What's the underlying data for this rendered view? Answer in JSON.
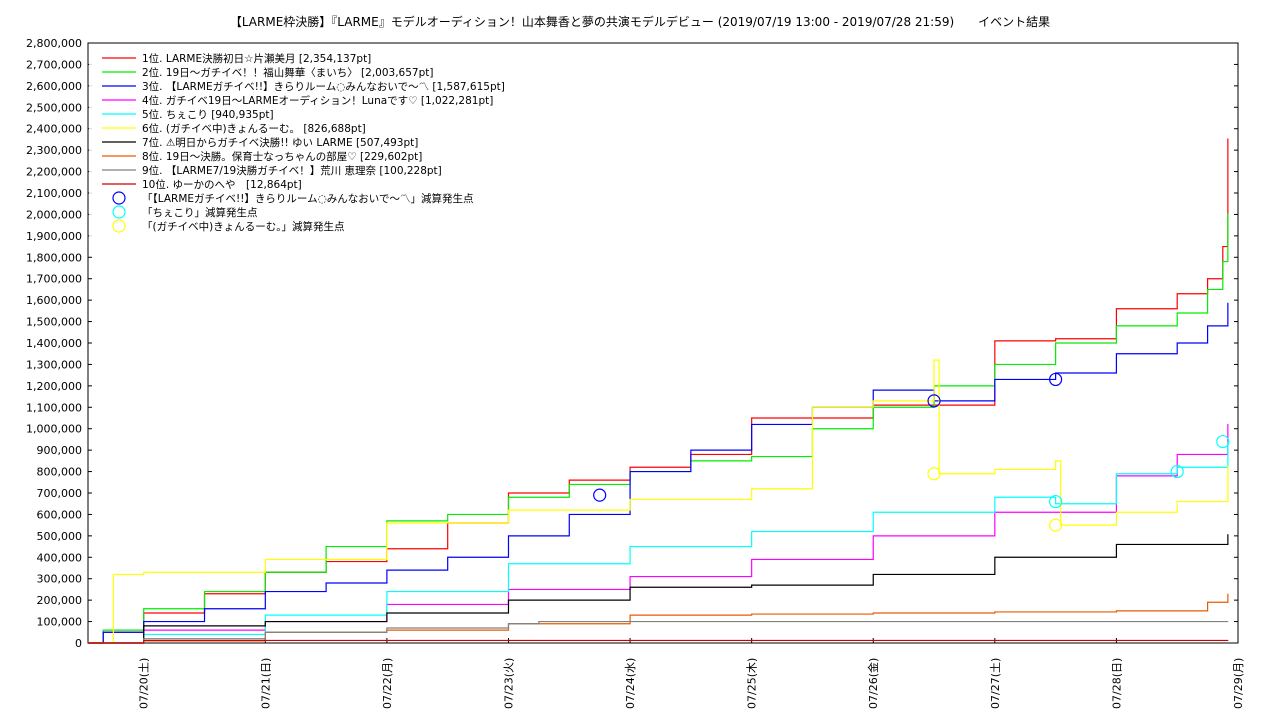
{
  "chart_data": {
    "type": "line",
    "title": "【LARME枠決勝】『LARME』モデルオーディション！山本舞香と夢の共演モデルデビュー (2019/07/19 13:00 - 2019/07/28 21:59)　　イベント結果",
    "ylim": [
      0,
      2800000
    ],
    "yticks": [
      0,
      100000,
      200000,
      300000,
      400000,
      500000,
      600000,
      700000,
      800000,
      900000,
      1000000,
      1100000,
      1200000,
      1300000,
      1400000,
      1500000,
      1600000,
      1700000,
      1800000,
      1900000,
      2000000,
      2100000,
      2200000,
      2300000,
      2400000,
      2500000,
      2600000,
      2700000,
      2800000
    ],
    "ytick_labels": [
      "0",
      "100,000",
      "200,000",
      "300,000",
      "400,000",
      "500,000",
      "600,000",
      "700,000",
      "800,000",
      "900,000",
      "1,000,000",
      "1,100,000",
      "1,200,000",
      "1,300,000",
      "1,400,000",
      "1,500,000",
      "1,600,000",
      "1,700,000",
      "1,800,000",
      "1,900,000",
      "2,000,000",
      "2,100,000",
      "2,200,000",
      "2,300,000",
      "2,400,000",
      "2,500,000",
      "2,600,000",
      "2,700,000",
      "2,800,000"
    ],
    "xlim": [
      "2019-07-19T13:00",
      "2019-07-29T00:00"
    ],
    "xticks": [
      "2019-07-20T00:00",
      "2019-07-21T00:00",
      "2019-07-22T00:00",
      "2019-07-23T00:00",
      "2019-07-24T00:00",
      "2019-07-25T00:00",
      "2019-07-26T00:00",
      "2019-07-27T00:00",
      "2019-07-28T00:00",
      "2019-07-29T00:00"
    ],
    "xtick_labels": [
      "07/20(土)",
      "07/21(日)",
      "07/22(月)",
      "07/23(火)",
      "07/24(水)",
      "07/25(木)",
      "07/26(金)",
      "07/27(土)",
      "07/28(日)",
      "07/29(月)"
    ],
    "grid": true,
    "legend_position": "top-left",
    "series": [
      {
        "name": "1位. LARME決勝初日☆片瀬美月 [2,354,137pt]",
        "color": "#ff0000",
        "x": [
          "2019-07-19T13:00",
          "2019-07-19T16:00",
          "2019-07-20T00:00",
          "2019-07-20T12:00",
          "2019-07-21T00:00",
          "2019-07-21T12:00",
          "2019-07-22T00:00",
          "2019-07-22T12:00",
          "2019-07-23T00:00",
          "2019-07-23T12:00",
          "2019-07-24T00:00",
          "2019-07-24T12:00",
          "2019-07-25T00:00",
          "2019-07-25T12:00",
          "2019-07-26T00:00",
          "2019-07-26T12:00",
          "2019-07-27T00:00",
          "2019-07-27T12:00",
          "2019-07-28T00:00",
          "2019-07-28T12:00",
          "2019-07-28T18:00",
          "2019-07-28T21:00",
          "2019-07-28T22:00"
        ],
        "y": [
          0,
          50000,
          140000,
          230000,
          330000,
          380000,
          440000,
          560000,
          700000,
          760000,
          820000,
          880000,
          1050000,
          1050000,
          1110000,
          1110000,
          1410000,
          1420000,
          1560000,
          1630000,
          1700000,
          1850000,
          2354137
        ]
      },
      {
        "name": "2位. 19日～ガチイベ！！福山舞華〈まいち〉 [2,003,657pt]",
        "color": "#00ee00",
        "x": [
          "2019-07-19T13:00",
          "2019-07-19T16:00",
          "2019-07-20T00:00",
          "2019-07-20T12:00",
          "2019-07-21T00:00",
          "2019-07-21T12:00",
          "2019-07-22T00:00",
          "2019-07-22T12:00",
          "2019-07-23T00:00",
          "2019-07-23T12:00",
          "2019-07-24T00:00",
          "2019-07-24T12:00",
          "2019-07-25T00:00",
          "2019-07-25T12:00",
          "2019-07-26T00:00",
          "2019-07-26T12:00",
          "2019-07-27T00:00",
          "2019-07-27T12:00",
          "2019-07-28T00:00",
          "2019-07-28T12:00",
          "2019-07-28T18:00",
          "2019-07-28T21:00",
          "2019-07-28T22:00"
        ],
        "y": [
          0,
          60000,
          160000,
          240000,
          330000,
          450000,
          570000,
          600000,
          680000,
          740000,
          800000,
          850000,
          870000,
          1000000,
          1100000,
          1200000,
          1300000,
          1400000,
          1480000,
          1540000,
          1650000,
          1780000,
          2003657
        ]
      },
      {
        "name": "3位. 【LARMEガチイベ!!】きらりルーム◌みんなおいで～〽 [1,587,615pt]",
        "color": "#0000ff",
        "x": [
          "2019-07-19T13:00",
          "2019-07-19T16:00",
          "2019-07-20T00:00",
          "2019-07-20T12:00",
          "2019-07-21T00:00",
          "2019-07-21T12:00",
          "2019-07-22T00:00",
          "2019-07-22T12:00",
          "2019-07-23T00:00",
          "2019-07-23T12:00",
          "2019-07-24T00:00",
          "2019-07-24T12:00",
          "2019-07-25T00:00",
          "2019-07-25T12:00",
          "2019-07-26T00:00",
          "2019-07-26T12:00",
          "2019-07-27T00:00",
          "2019-07-27T12:00",
          "2019-07-28T00:00",
          "2019-07-28T12:00",
          "2019-07-28T18:00",
          "2019-07-28T22:00"
        ],
        "y": [
          0,
          50000,
          100000,
          160000,
          240000,
          280000,
          340000,
          400000,
          500000,
          600000,
          800000,
          900000,
          1020000,
          1100000,
          1180000,
          1130000,
          1230000,
          1260000,
          1350000,
          1400000,
          1480000,
          1587615
        ]
      },
      {
        "name": "4位. ガチイベ19日～LARMEオーディション！Lunaです♡ [1,022,281pt]",
        "color": "#ff00ff",
        "x": [
          "2019-07-19T13:00",
          "2019-07-20T00:00",
          "2019-07-21T00:00",
          "2019-07-22T00:00",
          "2019-07-23T00:00",
          "2019-07-24T00:00",
          "2019-07-25T00:00",
          "2019-07-26T00:00",
          "2019-07-27T00:00",
          "2019-07-28T00:00",
          "2019-07-28T12:00",
          "2019-07-28T22:00"
        ],
        "y": [
          0,
          60000,
          100000,
          180000,
          250000,
          310000,
          390000,
          500000,
          610000,
          780000,
          880000,
          1022281
        ]
      },
      {
        "name": "5位. ちぇこり [940,935pt]",
        "color": "#00ffff",
        "x": [
          "2019-07-19T13:00",
          "2019-07-20T00:00",
          "2019-07-21T00:00",
          "2019-07-22T00:00",
          "2019-07-23T00:00",
          "2019-07-24T00:00",
          "2019-07-25T00:00",
          "2019-07-26T00:00",
          "2019-07-27T00:00",
          "2019-07-27T12:00",
          "2019-07-28T00:00",
          "2019-07-28T12:00",
          "2019-07-28T22:00"
        ],
        "y": [
          0,
          40000,
          130000,
          240000,
          370000,
          450000,
          520000,
          610000,
          680000,
          650000,
          790000,
          820000,
          940935
        ]
      },
      {
        "name": "6位. (ガチイベ中)きょんるーむ。 [826,688pt]",
        "color": "#ffff00",
        "x": [
          "2019-07-19T13:00",
          "2019-07-19T18:00",
          "2019-07-20T00:00",
          "2019-07-21T00:00",
          "2019-07-22T00:00",
          "2019-07-23T00:00",
          "2019-07-24T00:00",
          "2019-07-25T00:00",
          "2019-07-25T12:00",
          "2019-07-26T00:00",
          "2019-07-26T12:00",
          "2019-07-26T13:00",
          "2019-07-27T00:00",
          "2019-07-27T12:00",
          "2019-07-27T13:00",
          "2019-07-28T00:00",
          "2019-07-28T12:00",
          "2019-07-28T22:00"
        ],
        "y": [
          0,
          320000,
          330000,
          390000,
          560000,
          620000,
          670000,
          720000,
          1100000,
          1130000,
          1320000,
          790000,
          810000,
          850000,
          550000,
          610000,
          660000,
          826688
        ]
      },
      {
        "name": "7位. ⚠明日からガチイベ決勝!! ゆい LARME [507,493pt]",
        "color": "#000000",
        "x": [
          "2019-07-19T13:00",
          "2019-07-20T00:00",
          "2019-07-21T00:00",
          "2019-07-22T00:00",
          "2019-07-23T00:00",
          "2019-07-24T00:00",
          "2019-07-25T00:00",
          "2019-07-26T00:00",
          "2019-07-27T00:00",
          "2019-07-28T00:00",
          "2019-07-28T22:00"
        ],
        "y": [
          0,
          80000,
          100000,
          140000,
          200000,
          260000,
          270000,
          320000,
          400000,
          460000,
          507493
        ]
      },
      {
        "name": "8位. 19日～決勝。保育士なっちゃんの部屋♡ [229,602pt]",
        "color": "#e65c00",
        "x": [
          "2019-07-19T13:00",
          "2019-07-20T00:00",
          "2019-07-21T00:00",
          "2019-07-22T00:00",
          "2019-07-23T00:00",
          "2019-07-24T00:00",
          "2019-07-25T00:00",
          "2019-07-26T00:00",
          "2019-07-27T00:00",
          "2019-07-28T00:00",
          "2019-07-28T18:00",
          "2019-07-28T22:00"
        ],
        "y": [
          0,
          10000,
          50000,
          60000,
          90000,
          130000,
          135000,
          140000,
          145000,
          150000,
          190000,
          229602
        ]
      },
      {
        "name": "9位. 【LARME7/19決勝ガチイベ！】荒川 恵理奈 [100,228pt]",
        "color": "#808080",
        "x": [
          "2019-07-19T13:00",
          "2019-07-20T00:00",
          "2019-07-21T00:00",
          "2019-07-22T00:00",
          "2019-07-23T00:00",
          "2019-07-23T06:00",
          "2019-07-28T22:00"
        ],
        "y": [
          0,
          20000,
          50000,
          70000,
          90000,
          100000,
          100228
        ]
      },
      {
        "name": "10位. ゆーかのへや　[12,864pt]",
        "color": "#cc0000",
        "x": [
          "2019-07-19T13:00",
          "2019-07-20T00:00",
          "2019-07-28T22:00"
        ],
        "y": [
          0,
          12000,
          12864
        ]
      }
    ],
    "penalty_markers": [
      {
        "name": "「【LARMEガチイベ!!】きらりルーム◌みんなおいで～〽」減算発生点",
        "color": "#0000ff",
        "x": [
          "2019-07-23T18:00",
          "2019-07-26T12:00",
          "2019-07-27T12:00"
        ],
        "y": [
          690000,
          1130000,
          1230000
        ]
      },
      {
        "name": "「ちぇこり」減算発生点",
        "color": "#00ffff",
        "x": [
          "2019-07-27T12:00",
          "2019-07-28T12:00",
          "2019-07-28T21:00"
        ],
        "y": [
          660000,
          800000,
          940000
        ]
      },
      {
        "name": "「(ガチイベ中)きょんるーむ。」減算発生点",
        "color": "#ffff00",
        "x": [
          "2019-07-26T12:00",
          "2019-07-27T12:00"
        ],
        "y": [
          790000,
          550000
        ]
      }
    ]
  }
}
